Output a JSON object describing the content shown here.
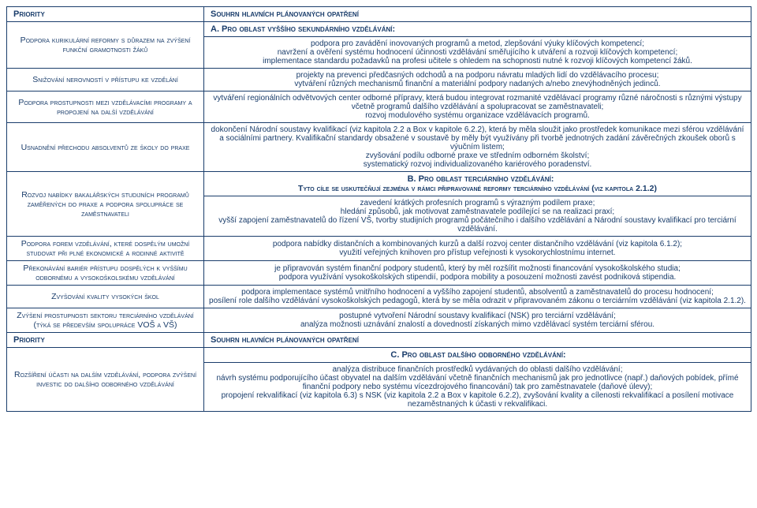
{
  "colors": {
    "text": "#1a3d6b",
    "border": "#1a3d6b",
    "bg": "#ffffff"
  },
  "header": {
    "left": "Priority",
    "right": "Souhrn hlavních plánovaných opatření"
  },
  "sectionA": {
    "title": "A. Pro oblast vyššího sekundárního vzdělávání:",
    "rows": [
      {
        "left": "Podpora kurikulární reformy s důrazem na zvýšení funkční gramotnosti žáků",
        "right": "podpora pro zavádění inovovaných programů a metod, zlepšování výuky klíčových kompetencí;\nnavržení a ověření systému hodnocení účinnosti vzdělávání směřujícího k utváření a rozvoji klíčových kompetencí;\nimplementace standardu požadavků na profesi učitele s ohledem na schopnosti nutné k rozvoji klíčových kompetencí žáků."
      },
      {
        "left": "Snižování nerovností v přístupu ke vzdělání",
        "right": "projekty na prevenci předčasných odchodů a na podporu návratu mladých lidí do vzdělávacího procesu;\nvytváření různých mechanismů finanční a materiální podpory nadaných a/nebo znevýhodněných jedinců."
      },
      {
        "left": "Podpora prostupnosti mezi vzdělávacími programy a propojení na další vzdělávání",
        "right": "vytváření regionálních odvětvových center odborné přípravy, která budou integrovat rozmanité vzdělávací programy různé náročnosti s různými výstupy včetně programů dalšího vzdělávání a spolupracovat se zaměstnavateli;\nrozvoj modulového systému organizace vzdělávacích programů."
      },
      {
        "left": "Usnadnění přechodu absolventů ze školy do praxe",
        "right": "dokončení Národní soustavy kvalifikací (viz kapitola 2.2 a Box v kapitole 6.2.2), která by měla sloužit jako prostředek komunikace mezi sférou vzdělávání a sociálními partnery. Kvalifikační standardy obsažené v soustavě by měly být využívány při tvorbě jednotných zadání závěrečných zkoušek oborů s výučním listem;\nzvyšování podílu odborné praxe ve středním odborném školství;\nsystematický rozvoj individualizovaného kariérového poradenství."
      }
    ]
  },
  "sectionB": {
    "title": "B. Pro oblast terciárního vzdělávání:",
    "subtitle": "Tyto cíle se uskutečňují zejména v rámci připravované reformy terciárního vzdělávání (viz kapitola 2.1.2)",
    "rows": [
      {
        "left": "Rozvoj nabídky bakalářských studijních programů zaměřených do praxe a podpora spolupráce se zaměstnavateli",
        "right": "zavedení krátkých profesních programů s výrazným podílem praxe;\nhledání způsobů, jak motivovat zaměstnavatele podílející se na realizaci praxí;\nvyšší zapojení zaměstnavatelů do řízení VŠ, tvorby studijních programů počátečního i dalšího vzdělávání a Národní soustavy kvalifikací pro terciární vzdělávání."
      },
      {
        "left": "Podpora forem vzdělávání, které dospělým umožní studovat při plné ekonomické a rodinné aktivitě",
        "right": "podpora nabídky distančních a kombinovaných kurzů a další rozvoj center distančního vzdělávání (viz kapitola 6.1.2);\nvyužití veřejných knihoven pro přístup veřejnosti k vysokorychlostnímu internet."
      },
      {
        "left": "Překonávání bariér přístupu dospělých k vyššímu odbornému a vysokoškolskému vzdělávání",
        "right": "je připravován systém finanční podpory studentů, který by měl rozšířit možnosti financování vysokoškolského studia;\npodpora využívání vysokoškolských stipendií, podpora mobility a posouzení možnosti zavést podniková stipendia."
      },
      {
        "left": "Zvyšování kvality vysokých škol",
        "right": "podpora implementace systémů vnitřního hodnocení a vyššího zapojení studentů, absolventů a zaměstnavatelů do procesu hodnocení;\nposílení role dalšího vzdělávání vysokoškolských pedagogů, která by se měla odrazit v připravovaném zákonu o terciárním vzdělávání (viz kapitola 2.1.2)."
      },
      {
        "left": "Zvýšení prostupnosti sektoru terciárního vzdělávání (týká se především spolupráce VOŠ a VŠ)",
        "right": "postupné vytvoření Národní soustavy kvalifikací (NSK) pro terciární vzdělávání;\nanalýza možnosti uznávání znalostí a dovedností získaných mimo vzdělávací systém terciární sférou."
      }
    ]
  },
  "header2": {
    "left": "Priority",
    "right": "Souhrn hlavních plánovaných opatření"
  },
  "sectionC": {
    "title": "C. Pro oblast dalšího odborného vzdělávání:",
    "rows": [
      {
        "left": "Rozšíření účasti na dalším vzdělávání, podpora zvýšení investic do dalšího odborného vzdělávání",
        "right": "analýza distribuce finančních prostředků vydávaných do oblasti dalšího vzdělávání;\nnávrh systému podporujícího účast obyvatel na dalším vzdělávání včetně finančních mechanismů jak pro jednotlivce (např.) daňových pobídek, přímé finanční podpory nebo systému vícezdrojového financování) tak pro zaměstnavatele (daňové úlevy);\npropojení rekvalifikací (viz kapitola 6.3) s NSK (viz kapitola 2.2 a Box v kapitole 6.2.2), zvyšování kvality a cílenosti rekvalifikací a posílení motivace nezaměstnaných k účasti v rekvalifikaci."
      }
    ]
  }
}
